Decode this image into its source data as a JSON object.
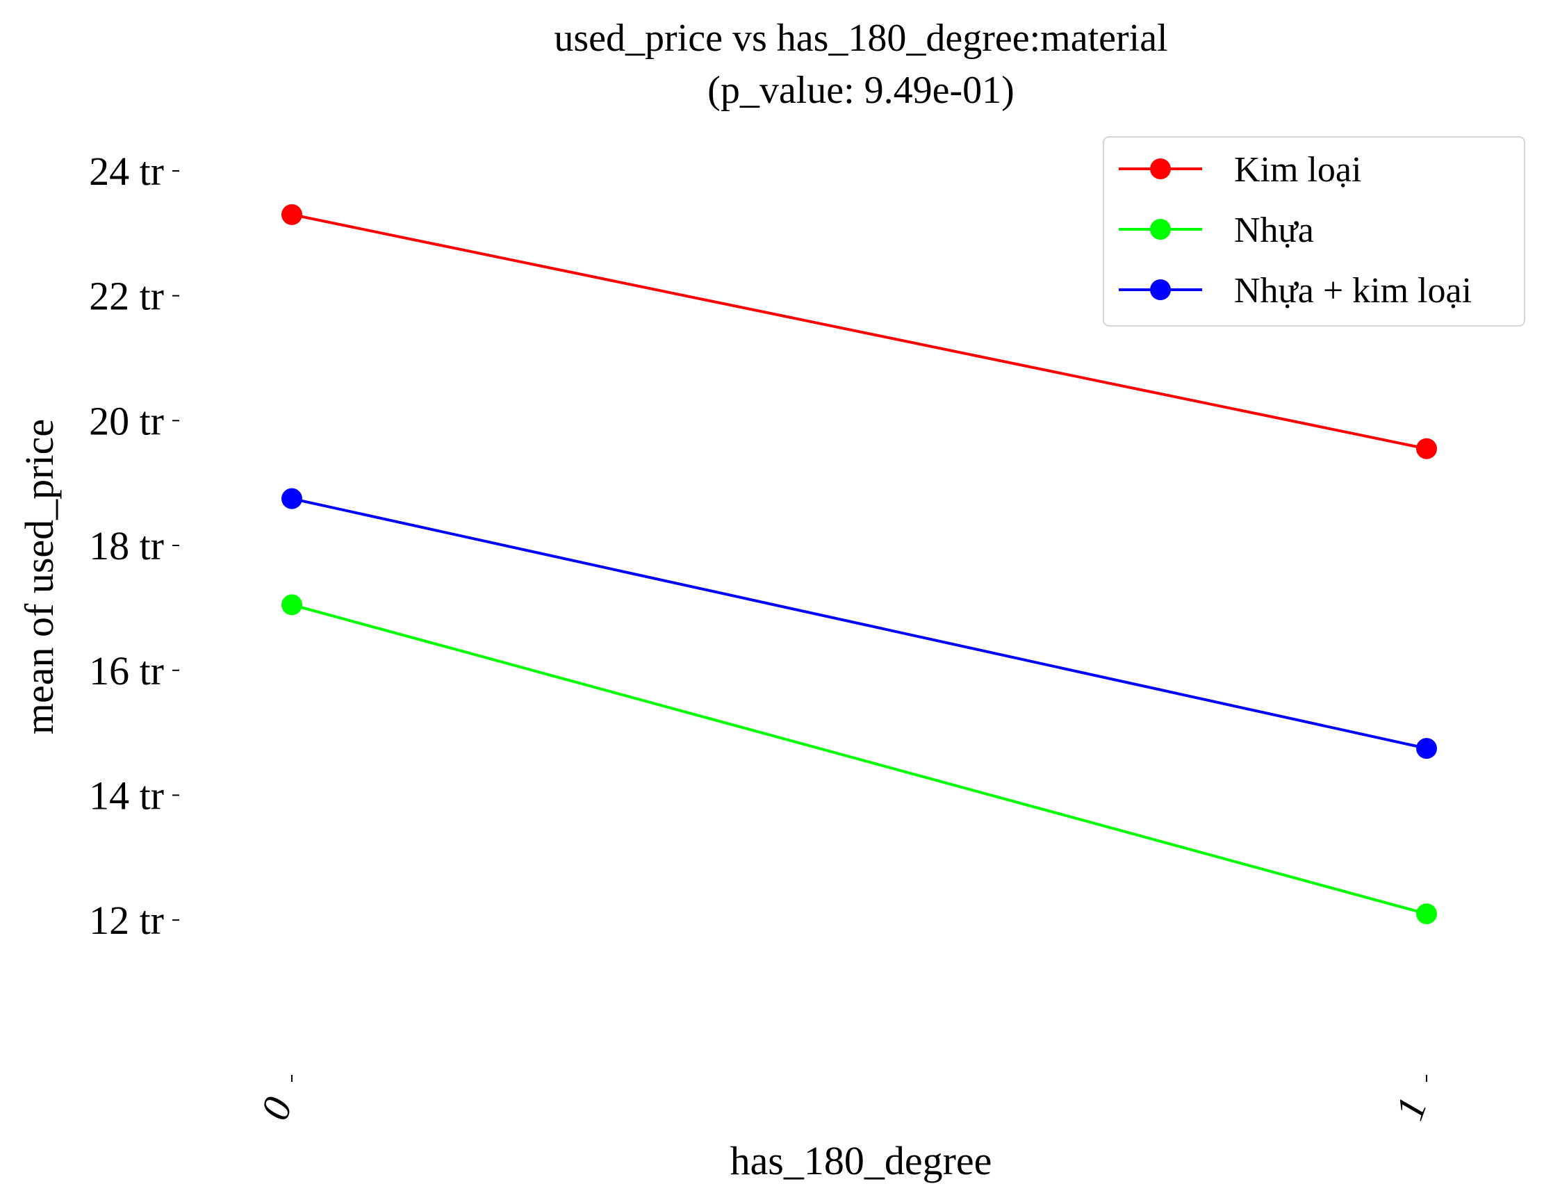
{
  "chart_data": {
    "type": "line",
    "title": "used_price vs has_180_degree:material",
    "subtitle": "(p_value: 9.49e-01)",
    "xlabel": "has_180_degree",
    "ylabel": "mean of used_price",
    "categories": [
      "0",
      "1"
    ],
    "ylim": [
      10.8,
      24.4
    ],
    "yticks": [
      {
        "value": 12,
        "label": "12 tr"
      },
      {
        "value": 14,
        "label": "14 tr"
      },
      {
        "value": 16,
        "label": "16 tr"
      },
      {
        "value": 18,
        "label": "18 tr"
      },
      {
        "value": 20,
        "label": "20 tr"
      },
      {
        "value": 22,
        "label": "22 tr"
      },
      {
        "value": 24,
        "label": "24 tr"
      }
    ],
    "grid": false,
    "legend_position": "top-right",
    "series": [
      {
        "name": "Kim loại",
        "color": "#ff0000",
        "values": [
          23.3,
          19.55
        ]
      },
      {
        "name": "Nhựa",
        "color": "#00ff00",
        "values": [
          17.05,
          12.1
        ]
      },
      {
        "name": "Nhựa + kim loại",
        "color": "#0000ff",
        "values": [
          18.75,
          14.75
        ]
      }
    ]
  }
}
